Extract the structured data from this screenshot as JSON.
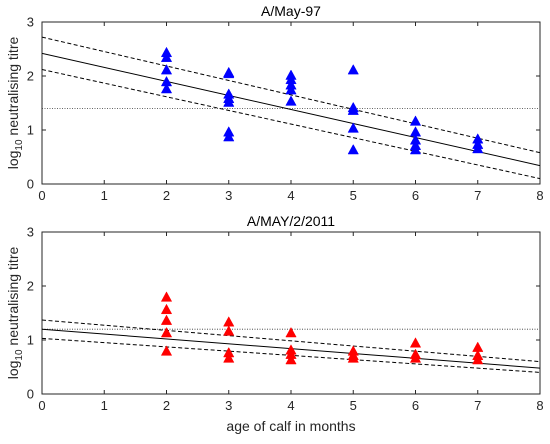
{
  "chart_data": [
    {
      "type": "scatter",
      "title": "A/May-97",
      "xlabel": "",
      "ylabel_main": "log",
      "ylabel_sub": "10",
      "ylabel_rest": " neutralising titre",
      "xlim": [
        0,
        8
      ],
      "ylim": [
        0,
        3
      ],
      "xticks": [
        "0",
        "1",
        "2",
        "3",
        "4",
        "5",
        "6",
        "7",
        "8"
      ],
      "yticks": [
        "0",
        "1",
        "2",
        "3"
      ],
      "grid": false,
      "marker_color": "#0000ff",
      "points": [
        [
          2,
          2.42
        ],
        [
          2,
          2.33
        ],
        [
          2,
          2.1
        ],
        [
          2,
          1.88
        ],
        [
          2,
          1.75
        ],
        [
          3,
          2.05
        ],
        [
          3,
          2.03
        ],
        [
          3,
          1.65
        ],
        [
          3,
          1.57
        ],
        [
          3,
          1.5
        ],
        [
          3,
          0.95
        ],
        [
          3,
          0.86
        ],
        [
          4,
          2.0
        ],
        [
          4,
          1.92
        ],
        [
          4,
          1.82
        ],
        [
          4,
          1.73
        ],
        [
          4,
          1.52
        ],
        [
          5,
          2.1
        ],
        [
          5,
          1.4
        ],
        [
          5,
          1.35
        ],
        [
          5,
          1.02
        ],
        [
          5,
          0.62
        ],
        [
          6,
          1.15
        ],
        [
          6,
          0.95
        ],
        [
          6,
          0.8
        ],
        [
          6,
          0.7
        ],
        [
          6,
          0.62
        ],
        [
          7,
          0.82
        ],
        [
          7,
          0.72
        ],
        [
          7,
          0.64
        ]
      ],
      "fit_line": {
        "intercept": 2.42,
        "slope": -0.26
      },
      "ci_upper": [
        [
          0,
          2.72
        ],
        [
          8,
          0.58
        ]
      ],
      "ci_lower": [
        [
          0,
          2.12
        ],
        [
          8,
          0.1
        ]
      ],
      "threshold": 1.4
    },
    {
      "type": "scatter",
      "title": "A/MAY/2/2011",
      "xlabel": "age of calf in months",
      "ylabel_main": "log",
      "ylabel_sub": "10",
      "ylabel_rest": " neutralising titre",
      "xlim": [
        0,
        8
      ],
      "ylim": [
        0,
        3
      ],
      "xticks": [
        "0",
        "1",
        "2",
        "3",
        "4",
        "5",
        "6",
        "7",
        "8"
      ],
      "yticks": [
        "0",
        "1",
        "2",
        "3"
      ],
      "grid": false,
      "marker_color": "#ff0000",
      "points": [
        [
          2,
          1.78
        ],
        [
          2,
          1.55
        ],
        [
          2,
          1.35
        ],
        [
          2,
          1.12
        ],
        [
          2,
          0.78
        ],
        [
          3,
          1.32
        ],
        [
          3,
          1.15
        ],
        [
          3,
          0.75
        ],
        [
          3,
          0.65
        ],
        [
          4,
          1.12
        ],
        [
          4,
          0.8
        ],
        [
          4,
          0.72
        ],
        [
          4,
          0.62
        ],
        [
          5,
          0.78
        ],
        [
          5,
          0.7
        ],
        [
          5,
          0.65
        ],
        [
          6,
          0.93
        ],
        [
          6,
          0.72
        ],
        [
          6,
          0.65
        ],
        [
          7,
          0.85
        ],
        [
          7,
          0.7
        ],
        [
          7,
          0.62
        ]
      ],
      "fit_line": {
        "intercept": 1.2,
        "slope": -0.09
      },
      "ci_upper": [
        [
          0,
          1.37
        ],
        [
          8,
          0.6
        ]
      ],
      "ci_lower": [
        [
          0,
          1.03
        ],
        [
          8,
          0.4
        ]
      ],
      "threshold": 1.2
    }
  ]
}
